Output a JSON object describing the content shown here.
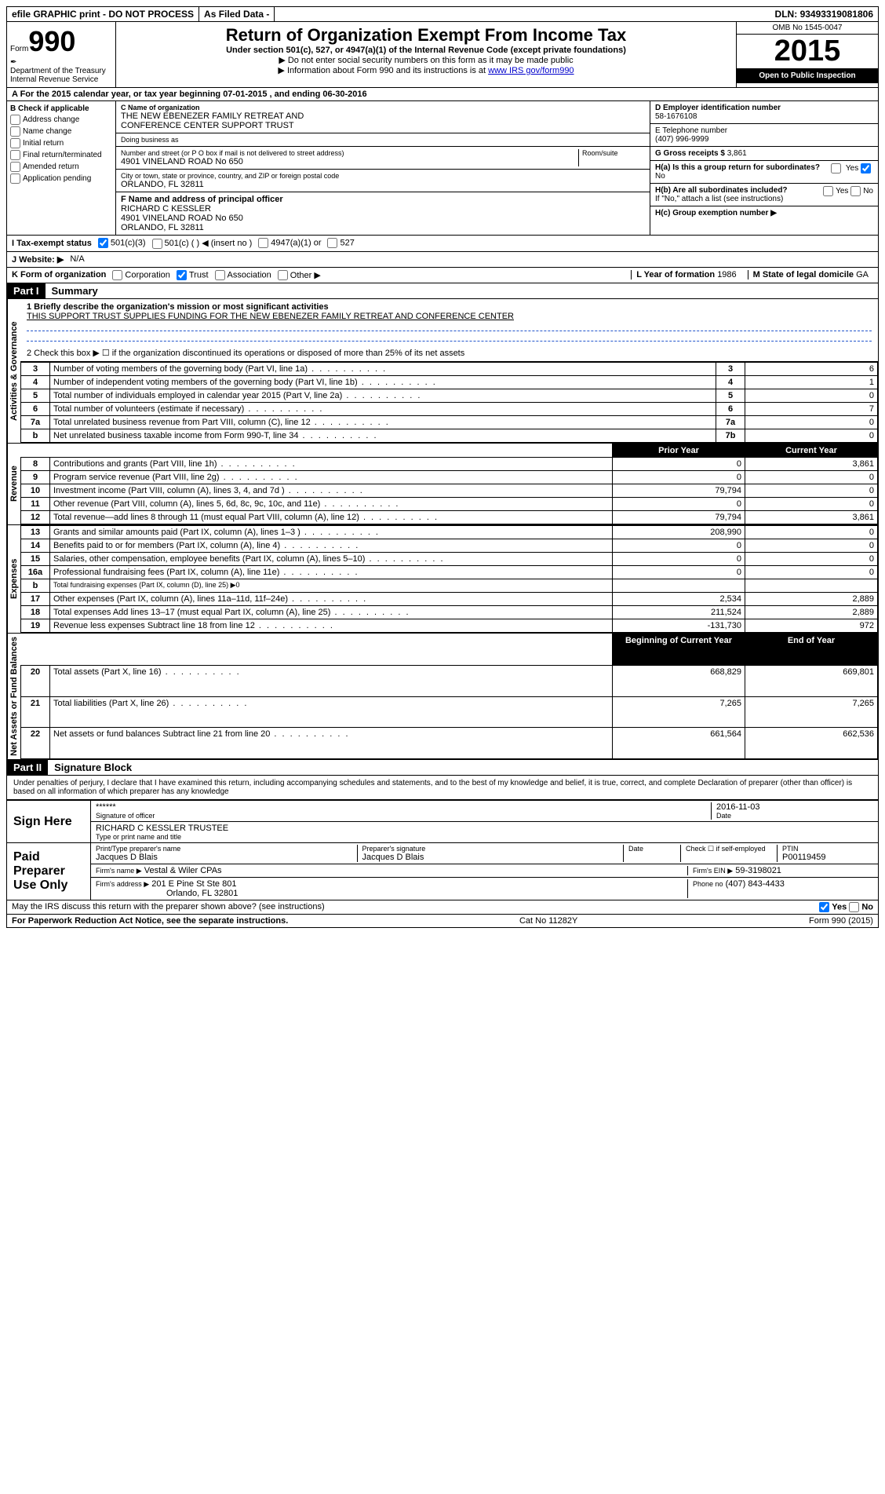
{
  "topbar": {
    "efile": "efile GRAPHIC print - DO NOT PROCESS",
    "asfiled": "As Filed Data -",
    "dln_label": "DLN:",
    "dln": "93493319081806"
  },
  "header": {
    "form_prefix": "Form",
    "form_no": "990",
    "dept1": "Department of the Treasury",
    "dept2": "Internal Revenue Service",
    "title": "Return of Organization Exempt From Income Tax",
    "subtitle": "Under section 501(c), 527, or 4947(a)(1) of the Internal Revenue Code (except private foundations)",
    "note1": "▶ Do not enter social security numbers on this form as it may be made public",
    "note2_pre": "▶ Information about Form 990 and its instructions is at ",
    "note2_link": "www IRS gov/form990",
    "omb": "OMB No 1545-0047",
    "year": "2015",
    "open": "Open to Public Inspection"
  },
  "rowA": {
    "text": "A  For the 2015 calendar year, or tax year beginning 07-01-2015   , and ending 06-30-2016"
  },
  "colB": {
    "label": "B  Check if applicable",
    "items": [
      "Address change",
      "Name change",
      "Initial return",
      "Final return/terminated",
      "Amended return",
      "Application pending"
    ]
  },
  "colC": {
    "name_label": "C Name of organization",
    "name1": "THE NEW EBENEZER FAMILY RETREAT AND",
    "name2": "CONFERENCE CENTER SUPPORT TRUST",
    "dba_label": "Doing business as",
    "addr_label": "Number and street (or P O box if mail is not delivered to street address)",
    "room_label": "Room/suite",
    "addr": "4901 VINELAND ROAD No 650",
    "city_label": "City or town, state or province, country, and ZIP or foreign postal code",
    "city": "ORLANDO, FL  32811",
    "f_label": "F  Name and address of principal officer",
    "f_name": "RICHARD C KESSLER",
    "f_addr": "4901 VINELAND ROAD No 650",
    "f_city": "ORLANDO, FL  32811"
  },
  "colD": {
    "d_label": "D Employer identification number",
    "d_val": "58-1676108",
    "e_label": "E Telephone number",
    "e_val": "(407) 996-9999",
    "g_label": "G Gross receipts $ ",
    "g_val": "3,861",
    "ha_label": "H(a)  Is this a group return for subordinates?",
    "ha_no": "No",
    "ha_yes": "Yes",
    "hb_label": "H(b)  Are all subordinates included?",
    "hb_yes": "Yes",
    "hb_no": "No",
    "hb_note": "If \"No,\" attach a list  (see instructions)",
    "hc_label": "H(c)  Group exemption number ▶"
  },
  "rowI": {
    "label": "I   Tax-exempt status",
    "opts": [
      "501(c)(3)",
      "501(c) (  ) ◀ (insert no )",
      "4947(a)(1) or",
      "527"
    ]
  },
  "rowJ": {
    "label": "J  Website: ▶",
    "val": "N/A"
  },
  "rowK": {
    "label": "K Form of organization",
    "opts": [
      "Corporation",
      "Trust",
      "Association",
      "Other ▶"
    ],
    "l_label": "L Year of formation",
    "l_val": "1986",
    "m_label": "M State of legal domicile",
    "m_val": "GA"
  },
  "part1": {
    "header": "Part I",
    "title": "Summary",
    "line1_label": "1 Briefly describe the organization's mission or most significant activities",
    "line1_text": "THIS SUPPORT TRUST SUPPLIES FUNDING FOR THE NEW EBENEZER FAMILY RETREAT AND CONFERENCE CENTER",
    "line2": "2  Check this box ▶ ☐ if the organization discontinued its operations or disposed of more than 25% of its net assets",
    "tabs": {
      "gov": "Activities & Governance",
      "rev": "Revenue",
      "exp": "Expenses",
      "net": "Net Assets or Fund Balances"
    },
    "gov_rows": [
      {
        "n": "3",
        "t": "Number of voting members of the governing body (Part VI, line 1a)",
        "r": "3",
        "v": "6"
      },
      {
        "n": "4",
        "t": "Number of independent voting members of the governing body (Part VI, line 1b)",
        "r": "4",
        "v": "1"
      },
      {
        "n": "5",
        "t": "Total number of individuals employed in calendar year 2015 (Part V, line 2a)",
        "r": "5",
        "v": "0"
      },
      {
        "n": "6",
        "t": "Total number of volunteers (estimate if necessary)",
        "r": "6",
        "v": "7"
      },
      {
        "n": "7a",
        "t": "Total unrelated business revenue from Part VIII, column (C), line 12",
        "r": "7a",
        "v": "0"
      },
      {
        "n": "b",
        "t": "Net unrelated business taxable income from Form 990-T, line 34",
        "r": "7b",
        "v": "0"
      }
    ],
    "col_headers": {
      "prior": "Prior Year",
      "curr": "Current Year",
      "begin": "Beginning of Current Year",
      "end": "End of Year"
    },
    "rev_rows": [
      {
        "n": "8",
        "t": "Contributions and grants (Part VIII, line 1h)",
        "p": "0",
        "c": "3,861"
      },
      {
        "n": "9",
        "t": "Program service revenue (Part VIII, line 2g)",
        "p": "0",
        "c": "0"
      },
      {
        "n": "10",
        "t": "Investment income (Part VIII, column (A), lines 3, 4, and 7d )",
        "p": "79,794",
        "c": "0"
      },
      {
        "n": "11",
        "t": "Other revenue (Part VIII, column (A), lines 5, 6d, 8c, 9c, 10c, and 11e)",
        "p": "0",
        "c": "0"
      },
      {
        "n": "12",
        "t": "Total revenue—add lines 8 through 11 (must equal Part VIII, column (A), line 12)",
        "p": "79,794",
        "c": "3,861"
      }
    ],
    "exp_rows": [
      {
        "n": "13",
        "t": "Grants and similar amounts paid (Part IX, column (A), lines 1–3 )",
        "p": "208,990",
        "c": "0"
      },
      {
        "n": "14",
        "t": "Benefits paid to or for members (Part IX, column (A), line 4)",
        "p": "0",
        "c": "0"
      },
      {
        "n": "15",
        "t": "Salaries, other compensation, employee benefits (Part IX, column (A), lines 5–10)",
        "p": "0",
        "c": "0"
      },
      {
        "n": "16a",
        "t": "Professional fundraising fees (Part IX, column (A), line 11e)",
        "p": "0",
        "c": "0"
      },
      {
        "n": "b",
        "t": "Total fundraising expenses (Part IX, column (D), line 25) ▶0",
        "p": "",
        "c": ""
      },
      {
        "n": "17",
        "t": "Other expenses (Part IX, column (A), lines 11a–11d, 11f–24e)",
        "p": "2,534",
        "c": "2,889"
      },
      {
        "n": "18",
        "t": "Total expenses  Add lines 13–17 (must equal Part IX, column (A), line 25)",
        "p": "211,524",
        "c": "2,889"
      },
      {
        "n": "19",
        "t": "Revenue less expenses  Subtract line 18 from line 12",
        "p": "-131,730",
        "c": "972"
      }
    ],
    "net_rows": [
      {
        "n": "20",
        "t": "Total assets (Part X, line 16)",
        "p": "668,829",
        "c": "669,801"
      },
      {
        "n": "21",
        "t": "Total liabilities (Part X, line 26)",
        "p": "7,265",
        "c": "7,265"
      },
      {
        "n": "22",
        "t": "Net assets or fund balances  Subtract line 21 from line 20",
        "p": "661,564",
        "c": "662,536"
      }
    ]
  },
  "part2": {
    "header": "Part II",
    "title": "Signature Block",
    "declaration": "Under penalties of perjury, I declare that I have examined this return, including accompanying schedules and statements, and to the best of my knowledge and belief, it is true, correct, and complete  Declaration of preparer (other than officer) is based on all information of which preparer has any knowledge",
    "sign_here": "Sign Here",
    "sig_stars": "******",
    "sig_of_officer": "Signature of officer",
    "sig_date": "2016-11-03",
    "date_label": "Date",
    "officer_name": "RICHARD C KESSLER TRUSTEE",
    "type_label": "Type or print name and title",
    "paid": "Paid Preparer Use Only",
    "prep_name_label": "Print/Type preparer's name",
    "prep_name": "Jacques D Blais",
    "prep_sig_label": "Preparer's signature",
    "prep_sig": "Jacques D Blais",
    "prep_date_label": "Date",
    "check_label": "Check ☐ if self-employed",
    "ptin_label": "PTIN",
    "ptin": "P00119459",
    "firm_name_label": "Firm's name    ▶",
    "firm_name": "Vestal & Wiler CPAs",
    "firm_ein_label": "Firm's EIN ▶",
    "firm_ein": "59-3198021",
    "firm_addr_label": "Firm's address ▶",
    "firm_addr": "201 E Pine St Ste 801",
    "firm_city": "Orlando, FL  32801",
    "phone_label": "Phone no",
    "phone": "(407) 843-4433"
  },
  "footer": {
    "may": "May the IRS discuss this return with the preparer shown above? (see instructions)",
    "yes": "Yes",
    "no": "No",
    "pra": "For Paperwork Reduction Act Notice, see the separate instructions.",
    "cat": "Cat No 11282Y",
    "form": "Form 990 (2015)"
  }
}
